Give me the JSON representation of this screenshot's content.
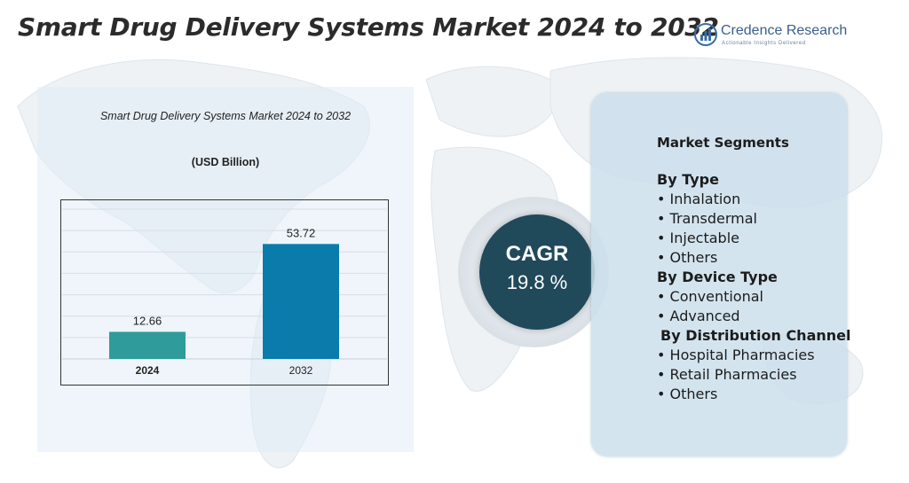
{
  "page": {
    "title": "Smart Drug Delivery Systems Market 2024 to 2032",
    "brand": {
      "name": "Credence Research",
      "tagline": "Actionable Insights Delivered",
      "logo_icon": "bar-chart-logo-icon"
    }
  },
  "chart_data": {
    "type": "bar",
    "title": "Smart Drug Delivery Systems Market 2024 to 2032",
    "subtitle": "(USD Billion)",
    "categories": [
      "2024",
      "2032"
    ],
    "values": [
      12.66,
      53.72
    ],
    "value_labels": [
      "12.66",
      "53.72"
    ],
    "ylim": [
      0,
      70
    ],
    "grid": true,
    "colors": [
      "#2f9b9b",
      "#0b7bab"
    ]
  },
  "cagr": {
    "label": "CAGR",
    "value": "19.8 %"
  },
  "segments": {
    "heading": "Market Segments",
    "groups": [
      {
        "title": "By Type",
        "items": [
          "Inhalation",
          "Transdermal",
          "Injectable",
          "Others"
        ]
      },
      {
        "title": "By Device Type",
        "items": [
          "Conventional",
          "Advanced"
        ]
      },
      {
        "title": "By Distribution Channel",
        "items": [
          "Hospital Pharmacies",
          "Retail Pharmacies",
          "Others"
        ]
      }
    ]
  },
  "colors": {
    "cagr_circle": "#20495a",
    "segment_panel": "#cbdfec",
    "chart_panel": "#e1ecf5"
  }
}
